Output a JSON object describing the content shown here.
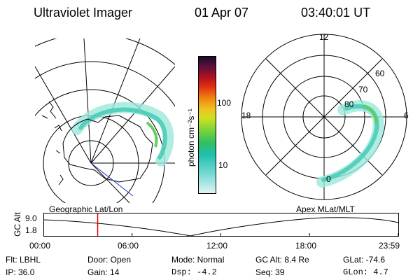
{
  "header": {
    "instrument": "Ultraviolet Imager",
    "date": "01 Apr 07",
    "time": "03:40:01 UT"
  },
  "colorbar": {
    "unit_label": "photon cm⁻²s⁻¹",
    "ticks": [
      "100",
      "10"
    ]
  },
  "left_map": {
    "caption": "Geographic Lat/Lon"
  },
  "right_map": {
    "caption": "Apex MLat/MLT",
    "mlt_labels": {
      "top": "12",
      "left": "18",
      "right": "6",
      "bottom": "0"
    },
    "mlat_labels": [
      "60",
      "70",
      "80"
    ]
  },
  "altitude_plot": {
    "ylabel": "GC Alt",
    "yticks": [
      "9.0",
      "1.8"
    ],
    "xticks": [
      "00:00",
      "06:00",
      "12:00",
      "18:00",
      "23:59"
    ],
    "current_time_hours": 3.67,
    "cursor_color": "#e00000"
  },
  "status": {
    "row1": {
      "filter": "Flt: LBHL",
      "door": "Door: Open",
      "mode": "Mode: Normal",
      "gc_alt": "GC Alt: 8.4 Re",
      "glat": "GLat: -74.6"
    },
    "row2": {
      "ip": "IP: 36.0",
      "gain": "Gain: 14",
      "dsp": "Dsp:   -4.2",
      "seq": "Seq: 39",
      "glon": "GLon:   4.7"
    }
  }
}
